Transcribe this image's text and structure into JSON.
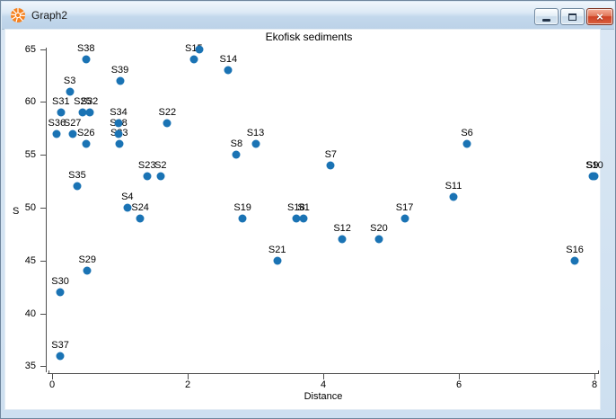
{
  "window": {
    "title": "Graph2",
    "icon": "past-logo-icon",
    "controls": [
      {
        "name": "minimize-icon",
        "glyph": ""
      },
      {
        "name": "maximize-icon",
        "glyph": ""
      },
      {
        "name": "close-icon",
        "glyph": "×"
      }
    ]
  },
  "colors": {
    "marker": "#1a73b4",
    "titlebar": "#c8dcee",
    "close_button": "#cf4326",
    "frame": "#d3e3f2"
  },
  "chart_data": {
    "type": "scatter",
    "title": "Ekofisk sediments",
    "xlabel": "Distance",
    "ylabel": "S",
    "xlim": [
      0,
      8
    ],
    "ylim": [
      35,
      65
    ],
    "xticks": [
      0,
      2,
      4,
      6,
      8
    ],
    "yticks": [
      35,
      40,
      45,
      50,
      55,
      60,
      65
    ],
    "grid": false,
    "legend": null,
    "marker_color": "#1a73b4",
    "points": [
      {
        "label": "S1",
        "x": 3.71,
        "y": 49
      },
      {
        "label": "S2",
        "x": 1.6,
        "y": 53
      },
      {
        "label": "S3",
        "x": 0.26,
        "y": 61
      },
      {
        "label": "S4",
        "x": 1.11,
        "y": 50
      },
      {
        "label": "S6",
        "x": 6.12,
        "y": 56
      },
      {
        "label": "S7",
        "x": 4.11,
        "y": 54
      },
      {
        "label": "S8",
        "x": 2.72,
        "y": 55
      },
      {
        "label": "S9",
        "x": 7.97,
        "y": 53
      },
      {
        "label": "S10",
        "x": 8.0,
        "y": 53
      },
      {
        "label": "S11",
        "x": 5.92,
        "y": 51
      },
      {
        "label": "S12",
        "x": 4.28,
        "y": 47
      },
      {
        "label": "S13",
        "x": 3.0,
        "y": 56
      },
      {
        "label": "S14",
        "x": 2.6,
        "y": 63
      },
      {
        "label": "S15",
        "x": 2.09,
        "y": 64
      },
      {
        "label": "S16",
        "x": 7.71,
        "y": 45
      },
      {
        "label": "S17",
        "x": 5.2,
        "y": 49
      },
      {
        "label": "S18",
        "x": 3.6,
        "y": 49
      },
      {
        "label": "S19",
        "x": 2.81,
        "y": 49
      },
      {
        "label": "S20",
        "x": 4.82,
        "y": 47
      },
      {
        "label": "S21",
        "x": 3.32,
        "y": 45
      },
      {
        "label": "S22",
        "x": 1.7,
        "y": 58
      },
      {
        "label": "S23",
        "x": 1.4,
        "y": 53
      },
      {
        "label": "S24",
        "x": 1.3,
        "y": 49
      },
      {
        "label": "S25",
        "x": 0.45,
        "y": 59
      },
      {
        "label": "S26",
        "x": 0.5,
        "y": 56
      },
      {
        "label": "S27",
        "x": 0.3,
        "y": 57
      },
      {
        "label": "S28",
        "x": 0.98,
        "y": 57
      },
      {
        "label": "S29",
        "x": 0.52,
        "y": 44
      },
      {
        "label": "S30",
        "x": 0.12,
        "y": 42
      },
      {
        "label": "S31",
        "x": 0.13,
        "y": 59
      },
      {
        "label": "S32",
        "x": 0.55,
        "y": 59
      },
      {
        "label": "S33",
        "x": 0.99,
        "y": 56
      },
      {
        "label": "S34",
        "x": 0.98,
        "y": 58
      },
      {
        "label": "S35",
        "x": 0.37,
        "y": 52
      },
      {
        "label": "S36",
        "x": 0.07,
        "y": 57
      },
      {
        "label": "S37",
        "x": 0.12,
        "y": 36
      },
      {
        "label": "S38",
        "x": 0.5,
        "y": 64
      },
      {
        "label": "S39",
        "x": 1.0,
        "y": 62
      },
      {
        "label": "",
        "x": 2.17,
        "y": 65
      }
    ]
  }
}
